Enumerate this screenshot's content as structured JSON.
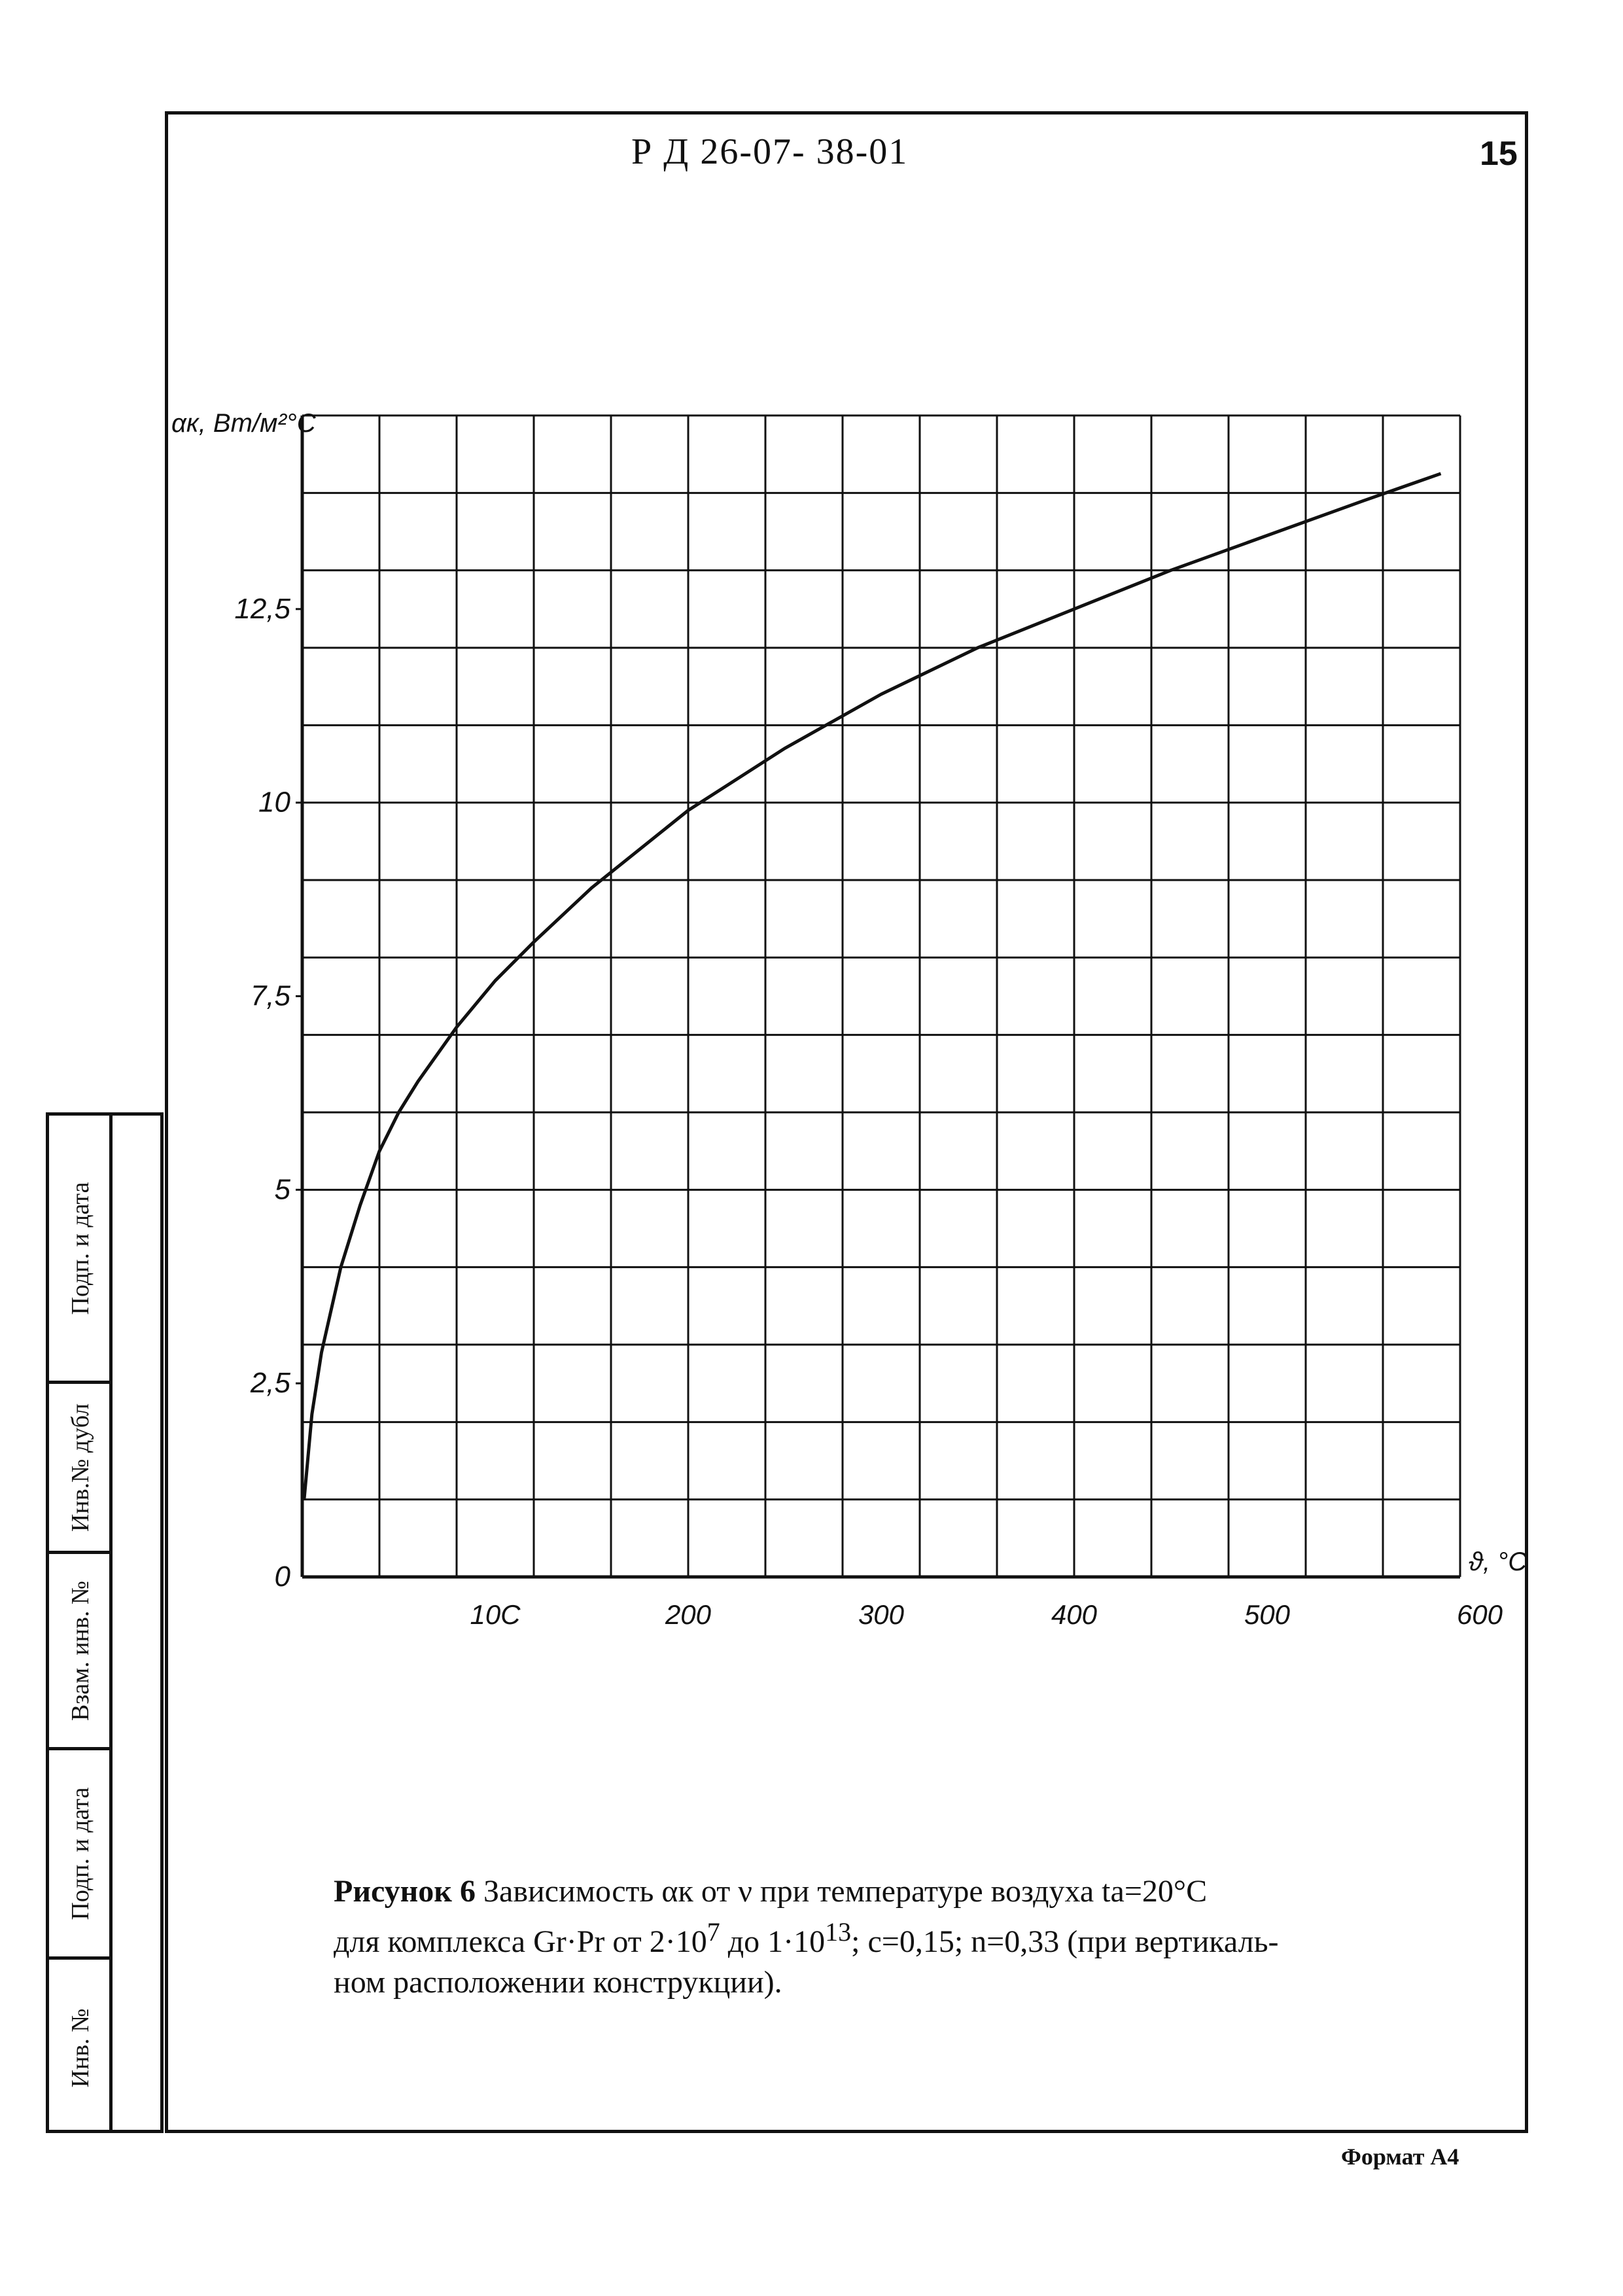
{
  "header": {
    "document_code": "Р Д 26-07- 38-01",
    "page_number": "15"
  },
  "side_stamp": {
    "cells": [
      "Подп. и дата",
      "Инв.№ дубл",
      "Взам. инв. №",
      "Подп. и дата",
      "Инв. №"
    ]
  },
  "chart_data": {
    "type": "line",
    "ylabel": "αк, Вт/м²°С",
    "xlabel": "ϑ, °С",
    "x_tick_labels": [
      "10С",
      "200",
      "300",
      "400",
      "500",
      "600"
    ],
    "y_tick_labels": [
      "0",
      "2,5",
      "5",
      "7,5",
      "10",
      "12,5"
    ],
    "x_ticks": [
      100,
      200,
      300,
      400,
      500,
      600
    ],
    "y_ticks": [
      0,
      2.5,
      5,
      7.5,
      10,
      12.5
    ],
    "xlim": [
      0,
      600
    ],
    "ylim": [
      0,
      15
    ],
    "grid": true,
    "series": [
      {
        "x": [
          1,
          5,
          10,
          20,
          30,
          40,
          50,
          60,
          80,
          100,
          120,
          150,
          200,
          250,
          300,
          350,
          400,
          450,
          500,
          550,
          590
        ],
        "y": [
          1.0,
          2.1,
          2.9,
          4.0,
          4.8,
          5.5,
          6.0,
          6.4,
          7.1,
          7.7,
          8.2,
          8.9,
          9.9,
          10.7,
          11.4,
          12.0,
          12.5,
          13.0,
          13.45,
          13.9,
          14.25
        ]
      }
    ]
  },
  "caption": {
    "line1_lead": "Рисунок 6",
    "line1_rest": " Зависимость αк от ν при температуре воздуха tа=20°С",
    "line2_a": "для комплекса Gr·Pr от 2·10",
    "line2_exp1": "7",
    "line2_b": " до 1·10",
    "line2_exp2": "13",
    "line2_c": "; с=0,15; n=0,33 (при вертикаль-",
    "line3": "ном расположении конструкции)."
  },
  "footer": {
    "format_label": "Формат А4"
  }
}
